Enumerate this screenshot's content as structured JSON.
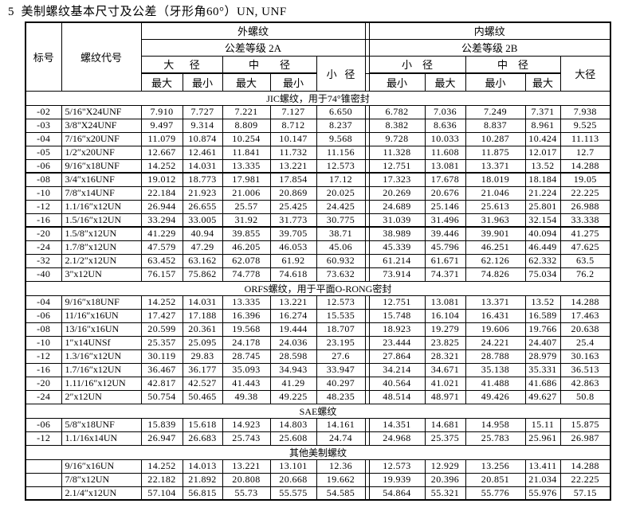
{
  "page_title": "5  美制螺纹基本尺寸及公差（牙形角60°）UN, UNF",
  "table": {
    "header": {
      "col_code": "标号",
      "col_thread": "螺纹代号",
      "external": "外螺纹",
      "internal": "内螺纹",
      "tolerance_2a": "公差等级 2A",
      "tolerance_2b": "公差等级 2B",
      "ext_major": "大      径",
      "ext_pitch": "中        径",
      "ext_minor": "小   径",
      "int_minor": "小    径",
      "int_pitch": "中    径",
      "int_major": "大径",
      "max": "最大",
      "min": "最小"
    },
    "sections": [
      {
        "name": "JIC螺纹，用于74°锥密封",
        "rows": [
          {
            "code": "-02",
            "thread": "5/16\"X24UNF",
            "ext": [
              "7.910",
              "7.727",
              "7.221",
              "7.127",
              "6.650"
            ],
            "int": [
              "6.782",
              "7.036",
              "7.249",
              "7.371",
              "7.938"
            ],
            "thick": false
          },
          {
            "code": "-03",
            "thread": "3/8\"X24UNF",
            "ext": [
              "9.497",
              "9.314",
              "8.809",
              "8.712",
              "8.237"
            ],
            "int": [
              "8.382",
              "8.636",
              "8.837",
              "8.961",
              "9.525"
            ],
            "thick": false
          },
          {
            "code": "-04",
            "thread": "7/16″x20UNF",
            "ext": [
              "11.079",
              "10.874",
              "10.254",
              "10.147",
              "9.568"
            ],
            "int": [
              "9.728",
              "10.033",
              "10.287",
              "10.424",
              "11.113"
            ],
            "thick": false
          },
          {
            "code": "-05",
            "thread": "1/2″x20UNF",
            "ext": [
              "12.667",
              "12.461",
              "11.841",
              "11.732",
              "11.156"
            ],
            "int": [
              "11.328",
              "11.608",
              "11.875",
              "12.017",
              "12.7"
            ],
            "thick": false
          },
          {
            "code": "-06",
            "thread": "9/16″x18UNF",
            "ext": [
              "14.252",
              "14.031",
              "13.335",
              "13.221",
              "12.573"
            ],
            "int": [
              "12.751",
              "13.081",
              "13.371",
              "13.52",
              "14.288"
            ],
            "thick": true
          },
          {
            "code": "-08",
            "thread": "3/4″x16UNF",
            "ext": [
              "19.012",
              "18.773",
              "17.981",
              "17.854",
              "17.12"
            ],
            "int": [
              "17.323",
              "17.678",
              "18.019",
              "18.184",
              "19.05"
            ],
            "thick": false
          },
          {
            "code": "-10",
            "thread": "7/8″x14UNF",
            "ext": [
              "22.184",
              "21.923",
              "21.006",
              "20.869",
              "20.025"
            ],
            "int": [
              "20.269",
              "20.676",
              "21.046",
              "21.224",
              "22.225"
            ],
            "thick": false
          },
          {
            "code": "-12",
            "thread": "1.1/16″x12UN",
            "ext": [
              "26.944",
              "26.655",
              "25.57",
              "25.425",
              "24.425"
            ],
            "int": [
              "24.689",
              "25.146",
              "25.613",
              "25.801",
              "26.988"
            ],
            "thick": false
          },
          {
            "code": "-16",
            "thread": "1.5/16″x12UN",
            "ext": [
              "33.294",
              "33.005",
              "31.92",
              "31.773",
              "30.775"
            ],
            "int": [
              "31.039",
              "31.496",
              "31.963",
              "32.154",
              "33.338"
            ],
            "thick": true
          },
          {
            "code": "-20",
            "thread": "1.5/8″x12UN",
            "ext": [
              "41.229",
              "40.94",
              "39.855",
              "39.705",
              "38.71"
            ],
            "int": [
              "38.989",
              "39.446",
              "39.901",
              "40.094",
              "41.275"
            ],
            "thick": false
          },
          {
            "code": "-24",
            "thread": "1.7/8″x12UN",
            "ext": [
              "47.579",
              "47.29",
              "46.205",
              "46.053",
              "45.06"
            ],
            "int": [
              "45.339",
              "45.796",
              "46.251",
              "46.449",
              "47.625"
            ],
            "thick": false
          },
          {
            "code": "-32",
            "thread": "2.1/2″x12UN",
            "ext": [
              "63.452",
              "63.162",
              "62.078",
              "61.92",
              "60.932"
            ],
            "int": [
              "61.214",
              "61.671",
              "62.126",
              "62.332",
              "63.5"
            ],
            "thick": false
          },
          {
            "code": "-40",
            "thread": "3\"x12UN",
            "ext": [
              "76.157",
              "75.862",
              "74.778",
              "74.618",
              "73.632"
            ],
            "int": [
              "73.914",
              "74.371",
              "74.826",
              "75.034",
              "76.2"
            ],
            "thick": false
          }
        ]
      },
      {
        "name": "ORFS螺纹，用于平面O-RONG密封",
        "rows": [
          {
            "code": "-04",
            "thread": "9/16″x18UNF",
            "ext": [
              "14.252",
              "14.031",
              "13.335",
              "13.221",
              "12.573"
            ],
            "int": [
              "12.751",
              "13.081",
              "13.371",
              "13.52",
              "14.288"
            ],
            "thick": false
          },
          {
            "code": "-06",
            "thread": "11/16″x16UN",
            "ext": [
              "17.427",
              "17.188",
              "16.396",
              "16.274",
              "15.535"
            ],
            "int": [
              "15.748",
              "16.104",
              "16.431",
              "16.589",
              "17.463"
            ],
            "thick": false
          },
          {
            "code": "-08",
            "thread": "13/16″x16UN",
            "ext": [
              "20.599",
              "20.361",
              "19.568",
              "19.444",
              "18.707"
            ],
            "int": [
              "18.923",
              "19.279",
              "19.606",
              "19.766",
              "20.638"
            ],
            "thick": false
          },
          {
            "code": "-10",
            "thread": "1″x14UNSf",
            "ext": [
              "25.357",
              "25.095",
              "24.178",
              "24.036",
              "23.195"
            ],
            "int": [
              "23.444",
              "23.825",
              "24.221",
              "24.407",
              "25.4"
            ],
            "thick": false
          },
          {
            "code": "-12",
            "thread": "1.3/16″x12UN",
            "ext": [
              "30.119",
              "29.83",
              "28.745",
              "28.598",
              "27.6"
            ],
            "int": [
              "27.864",
              "28.321",
              "28.788",
              "28.979",
              "30.163"
            ],
            "thick": false
          },
          {
            "code": "-16",
            "thread": "1.7/16″x12UN",
            "ext": [
              "36.467",
              "36.177",
              "35.093",
              "34.943",
              "33.947"
            ],
            "int": [
              "34.214",
              "34.671",
              "35.138",
              "35.331",
              "36.513"
            ],
            "thick": false
          },
          {
            "code": "-20",
            "thread": "1.11/16″x12UN",
            "ext": [
              "42.817",
              "42.527",
              "41.443",
              "41.29",
              "40.297"
            ],
            "int": [
              "40.564",
              "41.021",
              "41.488",
              "41.686",
              "42.863"
            ],
            "thick": false
          },
          {
            "code": "-24",
            "thread": "2″x12UN",
            "ext": [
              "50.754",
              "50.465",
              "49.38",
              "49.225",
              "48.235"
            ],
            "int": [
              "48.514",
              "48.971",
              "49.426",
              "49.627",
              "50.8"
            ],
            "thick": false
          }
        ]
      },
      {
        "name": "SAE螺纹",
        "rows": [
          {
            "code": "-06",
            "thread": "5/8″x18UNF",
            "ext": [
              "15.839",
              "15.618",
              "14.923",
              "14.803",
              "14.161"
            ],
            "int": [
              "14.351",
              "14.681",
              "14.958",
              "15.11",
              "15.875"
            ],
            "thick": false
          },
          {
            "code": "-12",
            "thread": "1.1/16x14UN",
            "ext": [
              "26.947",
              "26.683",
              "25.743",
              "25.608",
              "24.74"
            ],
            "int": [
              "24.968",
              "25.375",
              "25.783",
              "25.961",
              "26.987"
            ],
            "thick": false
          }
        ]
      },
      {
        "name": "其他美制螺纹",
        "rows": [
          {
            "code": "",
            "thread": "9/16″x16UN",
            "ext": [
              "14.252",
              "14.013",
              "13.221",
              "13.101",
              "12.36"
            ],
            "int": [
              "12.573",
              "12.929",
              "13.256",
              "13.411",
              "14.288"
            ],
            "thick": false
          },
          {
            "code": "",
            "thread": "7/8″x12UN",
            "ext": [
              "22.182",
              "21.892",
              "20.808",
              "20.668",
              "19.662"
            ],
            "int": [
              "19.939",
              "20.396",
              "20.851",
              "21.034",
              "22.225"
            ],
            "thick": false
          },
          {
            "code": "",
            "thread": "2.1/4″x12UN",
            "ext": [
              "57.104",
              "56.815",
              "55.73",
              "55.575",
              "54.585"
            ],
            "int": [
              "54.864",
              "55.321",
              "55.776",
              "55.976",
              "57.15"
            ],
            "thick": false
          }
        ]
      }
    ]
  }
}
